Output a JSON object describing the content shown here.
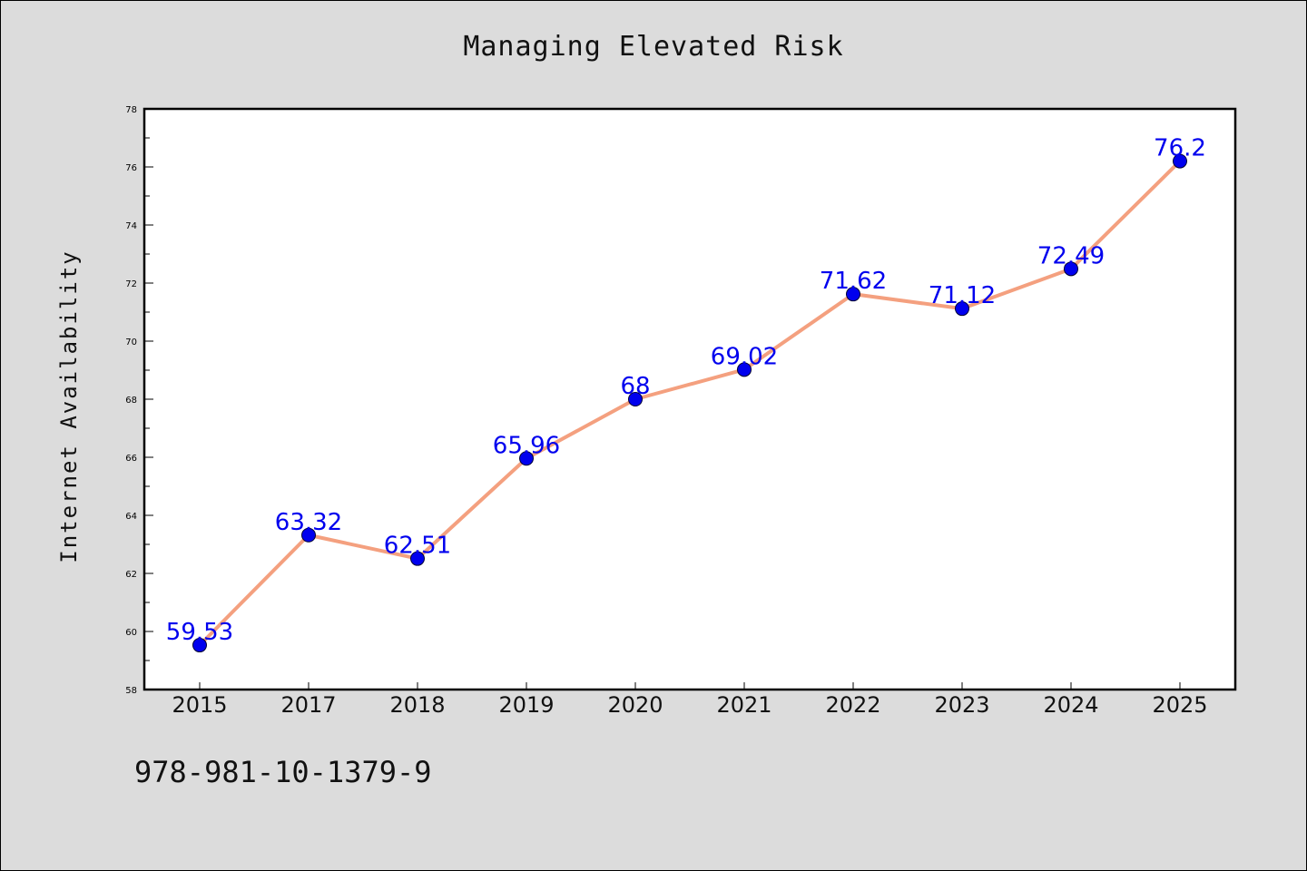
{
  "chart_data": {
    "type": "line",
    "title": "Managing Elevated Risk",
    "xlabel": "",
    "ylabel": "Internet Availability",
    "categories": [
      "2015",
      "2017",
      "2018",
      "2019",
      "2020",
      "2021",
      "2022",
      "2023",
      "2024",
      "2025"
    ],
    "values": [
      59.53,
      63.32,
      62.51,
      65.96,
      68,
      69.02,
      71.62,
      71.12,
      72.49,
      76.2
    ],
    "data_labels": [
      "59.53",
      "63.32",
      "62.51",
      "65.96",
      "68",
      "69.02",
      "71.62",
      "71.12",
      "72.49",
      "76.2"
    ],
    "ylim": [
      58,
      78
    ],
    "yticks": [
      58,
      60,
      62,
      64,
      66,
      68,
      70,
      72,
      74,
      76,
      78
    ],
    "grid": false,
    "line_color": "#f4a07f",
    "marker_color": "#0000ee",
    "label_color": "#0000ee"
  },
  "footer_text": "978-981-10-1379-9"
}
